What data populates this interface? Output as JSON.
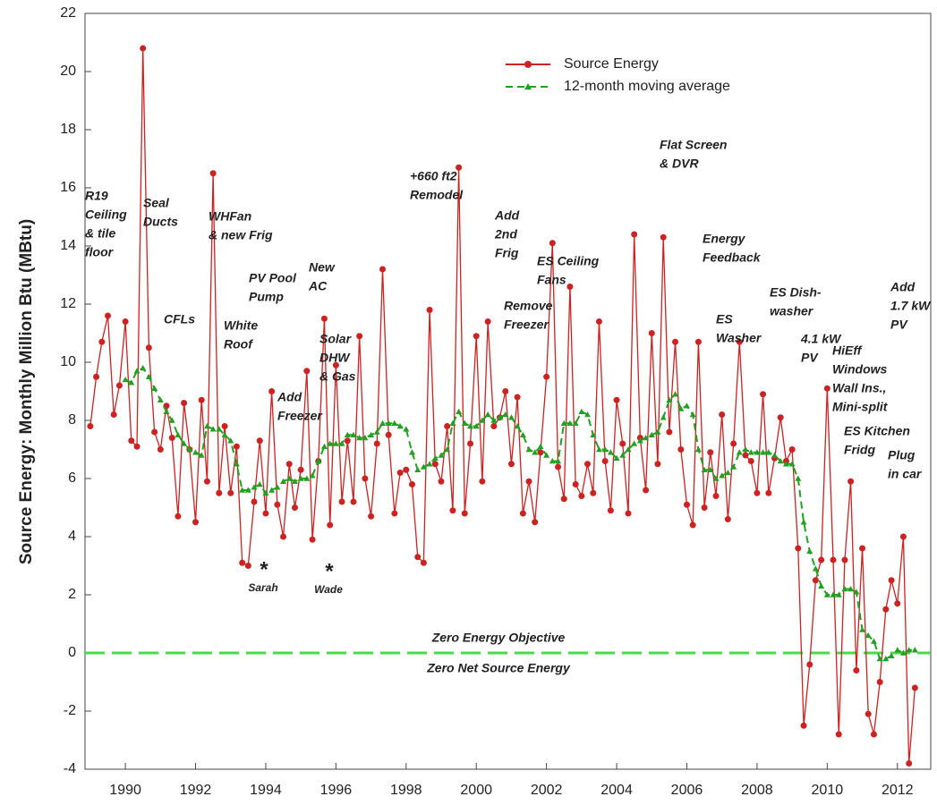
{
  "chart_data": {
    "type": "line",
    "y_label": "Source Energy: Monthly Million Btu (MBtu)",
    "xlim": [
      1988.85,
      2012.95
    ],
    "ylim": [
      -4,
      22
    ],
    "xticks": [
      1990,
      1992,
      1994,
      1996,
      1998,
      2000,
      2002,
      2004,
      2006,
      2008,
      2010,
      2012
    ],
    "yticks": [
      -4,
      -2,
      0,
      2,
      4,
      6,
      8,
      10,
      12,
      14,
      16,
      18,
      20,
      22
    ],
    "legend": "top-right",
    "x": [
      1989,
      1989.17,
      1989.33,
      1989.5,
      1989.67,
      1989.83,
      1990,
      1990.17,
      1990.33,
      1990.5,
      1990.67,
      1990.83,
      1991,
      1991.17,
      1991.33,
      1991.5,
      1991.67,
      1991.83,
      1992,
      1992.17,
      1992.33,
      1992.5,
      1992.67,
      1992.83,
      1993,
      1993.17,
      1993.33,
      1993.5,
      1993.67,
      1993.83,
      1994,
      1994.17,
      1994.33,
      1994.5,
      1994.67,
      1994.83,
      1995,
      1995.17,
      1995.33,
      1995.5,
      1995.67,
      1995.83,
      1996,
      1996.17,
      1996.33,
      1996.5,
      1996.67,
      1996.83,
      1997,
      1997.17,
      1997.33,
      1997.5,
      1997.67,
      1997.83,
      1998,
      1998.17,
      1998.33,
      1998.5,
      1998.67,
      1998.83,
      1999,
      1999.17,
      1999.33,
      1999.5,
      1999.67,
      1999.83,
      2000,
      2000.17,
      2000.33,
      2000.5,
      2000.67,
      2000.83,
      2001,
      2001.17,
      2001.33,
      2001.5,
      2001.67,
      2001.83,
      2002,
      2002.17,
      2002.33,
      2002.5,
      2002.67,
      2002.83,
      2003,
      2003.17,
      2003.33,
      2003.5,
      2003.67,
      2003.83,
      2004,
      2004.17,
      2004.33,
      2004.5,
      2004.67,
      2004.83,
      2005,
      2005.17,
      2005.33,
      2005.5,
      2005.67,
      2005.83,
      2006,
      2006.17,
      2006.33,
      2006.5,
      2006.67,
      2006.83,
      2007,
      2007.17,
      2007.33,
      2007.5,
      2007.67,
      2007.83,
      2008,
      2008.17,
      2008.33,
      2008.5,
      2008.67,
      2008.83,
      2009,
      2009.17,
      2009.33,
      2009.5,
      2009.67,
      2009.83,
      2010,
      2010.17,
      2010.33,
      2010.5,
      2010.67,
      2010.83,
      2011,
      2011.17,
      2011.33,
      2011.5,
      2011.67,
      2011.83,
      2012,
      2012.17,
      2012.33,
      2012.5
    ],
    "series": [
      {
        "name": "Source Energy",
        "color": "#cc2222",
        "marker": "circle",
        "dashed": false,
        "values": [
          7.8,
          9.5,
          10.7,
          11.6,
          8.2,
          9.2,
          11.4,
          7.3,
          7.1,
          20.8,
          10.5,
          7.6,
          7.0,
          8.5,
          7.4,
          4.7,
          8.6,
          7.0,
          4.5,
          8.7,
          5.9,
          16.5,
          5.5,
          7.8,
          5.5,
          7.1,
          3.1,
          3.0,
          5.2,
          7.3,
          4.8,
          9.0,
          5.1,
          4.0,
          6.5,
          5.0,
          6.3,
          9.7,
          3.9,
          6.6,
          11.5,
          4.4,
          9.9,
          5.2,
          7.3,
          5.2,
          10.9,
          6.0,
          4.7,
          7.2,
          13.2,
          7.5,
          4.8,
          6.2,
          6.3,
          5.8,
          3.3,
          3.1,
          11.8,
          6.5,
          5.9,
          7.8,
          4.9,
          16.7,
          4.8,
          7.2,
          10.9,
          5.9,
          11.4,
          7.8,
          8.1,
          9.0,
          6.5,
          8.8,
          4.8,
          5.9,
          4.5,
          6.9,
          9.5,
          14.1,
          6.4,
          5.3,
          12.6,
          5.8,
          5.4,
          6.5,
          5.5,
          11.4,
          6.6,
          4.9,
          8.7,
          7.2,
          4.8,
          14.4,
          7.4,
          5.6,
          11.0,
          6.5,
          14.3,
          7.6,
          10.7,
          7.0,
          5.1,
          4.4,
          10.7,
          5.0,
          6.9,
          5.4,
          8.2,
          4.6,
          7.2,
          10.7,
          6.8,
          6.6,
          5.5,
          8.9,
          5.5,
          6.7,
          8.1,
          6.6,
          7.0,
          3.6,
          -2.5,
          -0.4,
          2.5,
          3.2,
          9.1,
          3.2,
          -2.8,
          3.2,
          5.9,
          -0.6,
          3.6,
          -2.1,
          -2.8,
          -1.0,
          1.5,
          2.5,
          1.7,
          4.0,
          -3.8,
          -1.2
        ]
      },
      {
        "name": "12-month moving average",
        "color": "#22a022",
        "marker": "triangle",
        "dashed": true,
        "values": [
          null,
          null,
          null,
          null,
          null,
          null,
          9.4,
          9.3,
          9.7,
          9.8,
          9.5,
          9.1,
          8.7,
          8.3,
          8.0,
          7.5,
          7.2,
          7.0,
          6.9,
          6.8,
          7.8,
          7.7,
          7.7,
          7.5,
          7.3,
          6.5,
          5.6,
          5.6,
          5.7,
          5.8,
          5.5,
          5.6,
          5.7,
          5.9,
          6.0,
          5.9,
          6.0,
          6.0,
          6.1,
          6.6,
          7.1,
          7.2,
          7.2,
          7.2,
          7.5,
          7.5,
          7.4,
          7.4,
          7.5,
          7.6,
          7.9,
          7.9,
          7.9,
          7.8,
          7.7,
          6.9,
          6.3,
          6.4,
          6.5,
          6.7,
          6.8,
          7.0,
          7.9,
          8.3,
          7.9,
          7.8,
          7.8,
          8.0,
          8.2,
          8.0,
          8.1,
          8.2,
          8.1,
          7.8,
          7.5,
          7.0,
          6.9,
          7.1,
          6.8,
          6.6,
          6.6,
          7.9,
          7.9,
          7.9,
          8.3,
          8.2,
          7.5,
          7.0,
          7.0,
          6.9,
          6.7,
          6.8,
          7.0,
          7.2,
          7.3,
          7.4,
          7.5,
          7.6,
          8.1,
          8.7,
          8.9,
          8.4,
          8.5,
          8.2,
          7.0,
          6.3,
          6.3,
          6.0,
          6.1,
          6.2,
          6.4,
          6.9,
          7.0,
          6.9,
          6.9,
          6.9,
          6.9,
          6.8,
          6.6,
          6.5,
          6.5,
          6.0,
          4.5,
          3.5,
          2.9,
          2.3,
          2.0,
          2.0,
          2.0,
          2.2,
          2.2,
          2.1,
          0.8,
          0.6,
          0.4,
          -0.2,
          -0.2,
          -0.1,
          0.1,
          0.0,
          0.1,
          0.1
        ]
      }
    ],
    "reference_line": {
      "value": 0,
      "color": "#44dd44",
      "label_above": "Zero Energy Objective",
      "label_above_color": "#44dd44",
      "label_below": "Zero Net Source Energy",
      "label_below_color": "#227722"
    },
    "annotations": [
      {
        "lines": [
          "R19",
          "Ceiling",
          "& tile",
          "floor"
        ],
        "color": "#9a9a1e"
      },
      {
        "lines": [
          "Seal",
          "Ducts"
        ],
        "color": "#9a9a1e"
      },
      {
        "lines": [
          "WHFan",
          "& new Frig"
        ],
        "color": "#9a9a1e"
      },
      {
        "lines": [
          "CFLs"
        ],
        "color": "#9a9a1e"
      },
      {
        "lines": [
          "White",
          "Roof"
        ],
        "color": "#9a9a1e"
      },
      {
        "lines": [
          "PV Pool",
          "Pump"
        ],
        "color": "#f0902a"
      },
      {
        "lines": [
          "New",
          "AC"
        ],
        "color": "#2a2ad0"
      },
      {
        "lines": [
          "Solar",
          "DHW",
          "& Gas"
        ],
        "color": "#f0902a"
      },
      {
        "lines": [
          "Add",
          "Freezer"
        ],
        "color": "#2a2ad0"
      },
      {
        "lines": [
          "*"
        ],
        "color": "#2a2ad0"
      },
      {
        "lines": [
          "Sarah"
        ],
        "color": "#2a2ad0"
      },
      {
        "lines": [
          "*"
        ],
        "color": "#2a2ad0"
      },
      {
        "lines": [
          "Wade"
        ],
        "color": "#2a2ad0"
      },
      {
        "lines": [
          "+660 ft2",
          "Remodel"
        ],
        "color": "#2a2ad0"
      },
      {
        "lines": [
          "Add",
          "2nd",
          "Frig"
        ],
        "color": "#2a2ad0"
      },
      {
        "lines": [
          "ES Ceiling",
          "Fans"
        ],
        "color": "#9a9a1e"
      },
      {
        "lines": [
          "Remove",
          "Freezer"
        ],
        "color": "#9a9a1e"
      },
      {
        "lines": [
          "Flat Screen",
          "& DVR"
        ],
        "color": "#2a2ad0"
      },
      {
        "lines": [
          "Energy",
          "Feedback"
        ],
        "color": "#9a9a1e"
      },
      {
        "lines": [
          "ES",
          "Washer"
        ],
        "color": "#9a9a1e"
      },
      {
        "lines": [
          "ES Dish-",
          "washer"
        ],
        "color": "#9a9a1e"
      },
      {
        "lines": [
          "4.1 kW",
          "PV"
        ],
        "color": "#f0902a"
      },
      {
        "lines": [
          "HiEff",
          "Windows",
          "Wall Ins.,",
          "Mini-split"
        ],
        "color": "#9a9a1e"
      },
      {
        "lines": [
          "Add",
          "1.7 kW",
          "PV"
        ],
        "color": "#f0902a"
      },
      {
        "lines": [
          "ES Kitchen",
          "Fridg"
        ],
        "color": "#9a9a1e"
      },
      {
        "lines": [
          "Plug",
          "in car"
        ],
        "color": "#2a2ad0"
      }
    ]
  }
}
